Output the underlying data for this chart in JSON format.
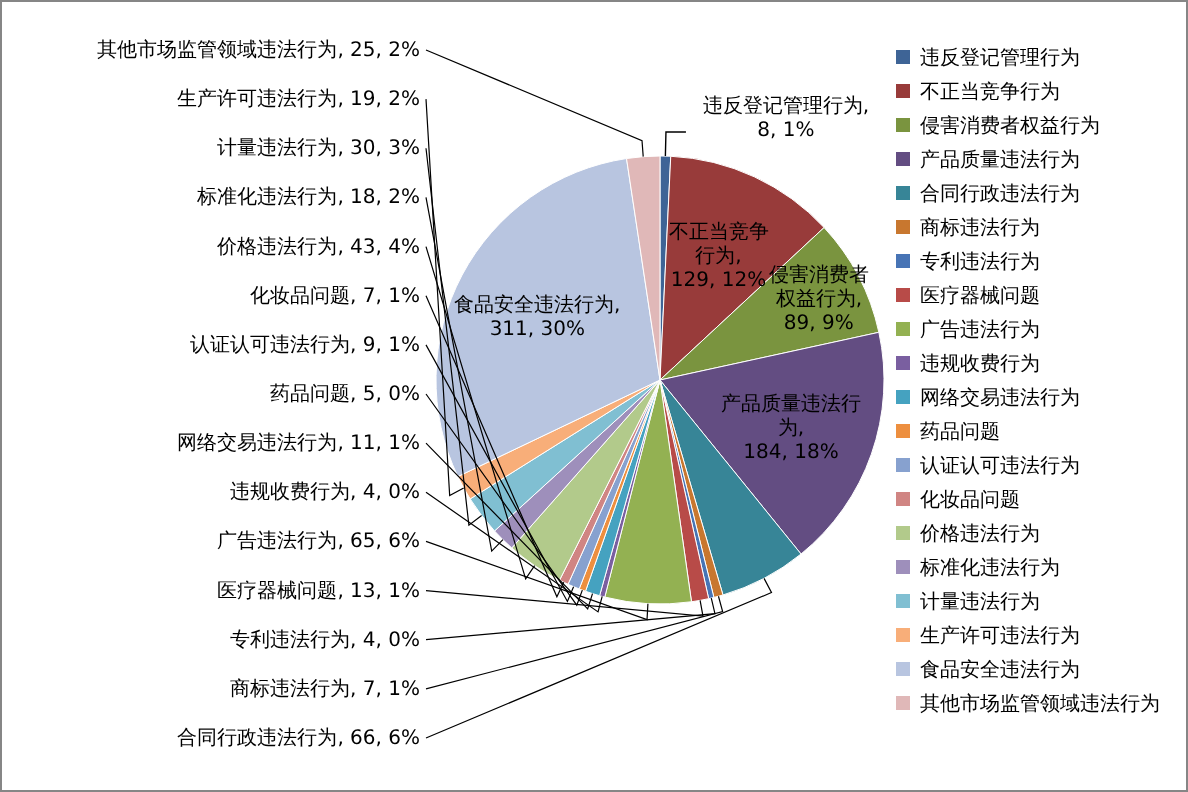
{
  "chart_data": {
    "type": "pie",
    "legend": "right",
    "categories": [
      "违反登记管理行为",
      "不正当竞争行为",
      "侵害消费者权益行为",
      "产品质量违法行为",
      "合同行政违法行为",
      "商标违法行为",
      "专利违法行为",
      "医疗器械问题",
      "广告违法行为",
      "违规收费行为",
      "网络交易违法行为",
      "药品问题",
      "认证认可违法行为",
      "化妆品问题",
      "价格违法行为",
      "标准化违法行为",
      "计量违法行为",
      "生产许可违法行为",
      "食品安全违法行为",
      "其他市场监管领域违法行为"
    ],
    "values": [
      8,
      129,
      89,
      184,
      66,
      7,
      4,
      13,
      65,
      4,
      11,
      5,
      9,
      7,
      43,
      18,
      30,
      19,
      311,
      25
    ],
    "colors": [
      "#3e6496",
      "#983b3a",
      "#7a943f",
      "#634d82",
      "#378597",
      "#c8772f",
      "#4774b5",
      "#b84b48",
      "#93b152",
      "#7a5fa0",
      "#45a2c0",
      "#ed8f3f",
      "#87a1cf",
      "#d08583",
      "#b2ca8b",
      "#9e8fbb",
      "#80bfd2",
      "#f8ae79",
      "#b8c5e0",
      "#e0b8b8"
    ],
    "value_labels": [
      "违反登记管理行为, 8, 1%",
      "不正当竞争行为, 129, 12%",
      "侵害消费者权益行为, 89, 9%",
      "产品质量违法行为, 184, 18%",
      "合同行政违法行为, 66, 6%",
      "商标违法行为, 7, 1%",
      "专利违法行为, 4, 0%",
      "医疗器械问题, 13, 1%",
      "广告违法行为, 65, 6%",
      "违规收费行为, 4, 0%",
      "网络交易违法行为, 11, 1%",
      "药品问题, 5, 0%",
      "认证认可违法行为, 9, 1%",
      "化妆品问题, 7, 1%",
      "价格违法行为, 43, 4%",
      "标准化违法行为, 18, 2%",
      "计量违法行为, 30, 3%",
      "生产许可违法行为, 19, 2%",
      "食品安全违法行为, 311, 30%",
      "其他市场监管领域违法行为, 25, 2%"
    ]
  }
}
